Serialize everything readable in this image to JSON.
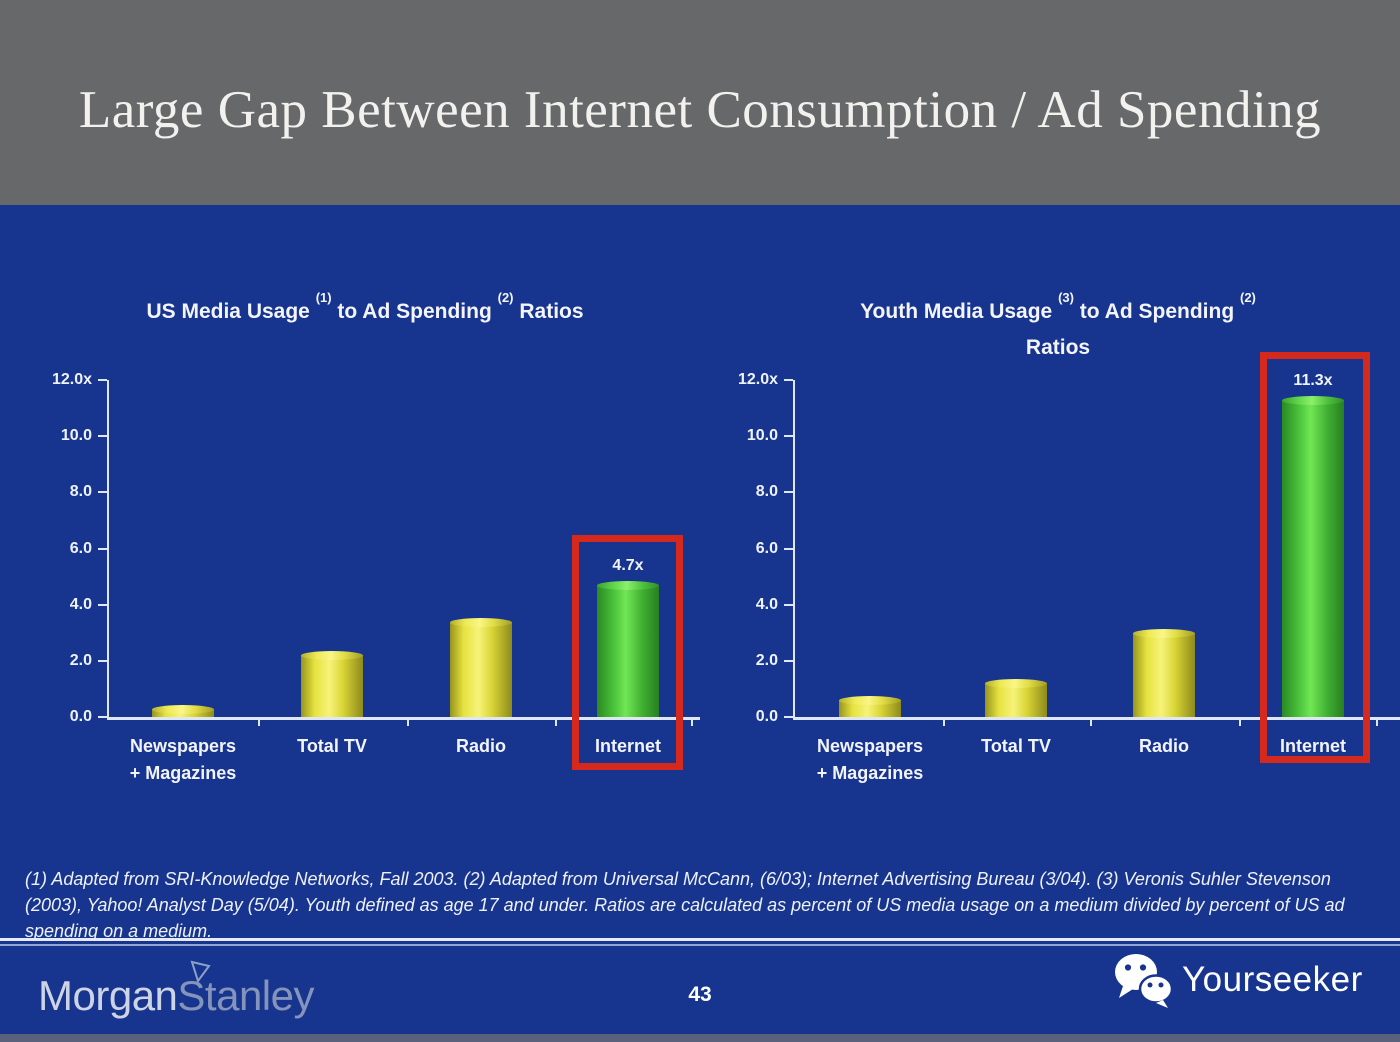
{
  "slide": {
    "title": "Large Gap Between Internet Consumption / Ad Spending",
    "page_number": "43",
    "footnote": "(1) Adapted from SRI-Knowledge Networks, Fall 2003.  (2) Adapted from Universal McCann, (6/03); Internet Advertising Bureau (3/04). (3) Veronis Suhler Stevenson (2003), Yahoo! Analyst Day (5/04).  Youth defined as age 17 and under.  Ratios are calculated as percent of US media usage on a medium divided by percent of US ad spending on a medium.",
    "brand": {
      "word1": "Morgan",
      "word2": "Stanley"
    },
    "watermark": {
      "label": "Yourseeker",
      "icon": "wechat-icon"
    }
  },
  "colors": {
    "header_gray": "#67686a",
    "slide_blue": "#17358f",
    "axis_white": "#dfe7f5",
    "bar_yellow": "#e6e23e",
    "bar_green": "#4cc43c",
    "highlight_red": "#d5291e"
  },
  "chart_data": [
    {
      "type": "bar",
      "title": "US Media Usage (1) to Ad Spending (2) Ratios",
      "title_lines": [
        [
          {
            "v": "US Media Usage "
          },
          {
            "v": "(1)",
            "sup": true
          },
          {
            "v": " to Ad Spending "
          },
          {
            "v": "(2)",
            "sup": true
          },
          {
            "v": " Ratios"
          }
        ]
      ],
      "categories": [
        "Newspapers + Magazines",
        "Total TV",
        "Radio",
        "Internet"
      ],
      "category_lines": [
        [
          "Newspapers",
          "+ Magazines"
        ],
        [
          "Total TV"
        ],
        [
          "Radio"
        ],
        [
          "Internet"
        ]
      ],
      "values": [
        0.3,
        2.2,
        3.4,
        4.7
      ],
      "value_labels": [
        "",
        "",
        "",
        "4.7x"
      ],
      "bar_colors": [
        "yellow",
        "yellow",
        "yellow",
        "green"
      ],
      "highlight_index": 3,
      "y_ticks": [
        {
          "v": 12,
          "label": "12.0x"
        },
        {
          "v": 10,
          "label": "10.0"
        },
        {
          "v": 8,
          "label": "8.0"
        },
        {
          "v": 6,
          "label": "6.0"
        },
        {
          "v": 4,
          "label": "4.0"
        },
        {
          "v": 2,
          "label": "2.0"
        },
        {
          "v": 0,
          "label": "0.0"
        }
      ],
      "ylim": [
        0,
        12
      ],
      "xlabel": "",
      "ylabel": "",
      "grid": false,
      "legend": null
    },
    {
      "type": "bar",
      "title": "Youth Media Usage (3) to Ad Spending (2) Ratios",
      "title_lines": [
        [
          {
            "v": "Youth Media Usage "
          },
          {
            "v": "(3)",
            "sup": true
          },
          {
            "v": " to Ad Spending "
          },
          {
            "v": "(2)",
            "sup": true
          }
        ],
        [
          {
            "v": "Ratios"
          }
        ]
      ],
      "categories": [
        "Newspapers + Magazines",
        "Total TV",
        "Radio",
        "Internet"
      ],
      "category_lines": [
        [
          "Newspapers",
          "+ Magazines"
        ],
        [
          "Total TV"
        ],
        [
          "Radio"
        ],
        [
          "Internet"
        ]
      ],
      "values": [
        0.6,
        1.2,
        3.0,
        11.3
      ],
      "value_labels": [
        "",
        "",
        "",
        "11.3x"
      ],
      "bar_colors": [
        "yellow",
        "yellow",
        "yellow",
        "green"
      ],
      "highlight_index": 3,
      "y_ticks": [
        {
          "v": 12,
          "label": "12.0x"
        },
        {
          "v": 10,
          "label": "10.0"
        },
        {
          "v": 8,
          "label": "8.0"
        },
        {
          "v": 6,
          "label": "6.0"
        },
        {
          "v": 4,
          "label": "4.0"
        },
        {
          "v": 2,
          "label": "2.0"
        },
        {
          "v": 0,
          "label": "0.0"
        }
      ],
      "ylim": [
        0,
        12
      ],
      "xlabel": "",
      "ylabel": "",
      "grid": false,
      "legend": null
    }
  ]
}
